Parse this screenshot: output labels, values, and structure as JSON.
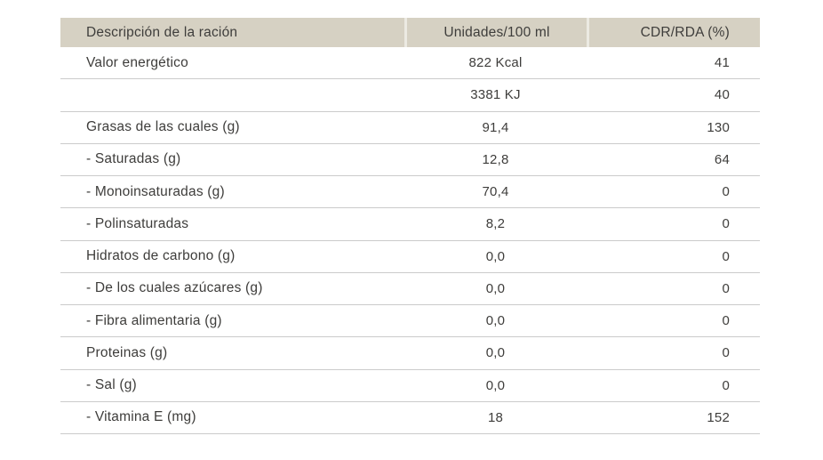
{
  "colors": {
    "header_bg": "#d6d1c3",
    "header_gap": "#eceae2",
    "row_line": "#cbcbcb",
    "text": "#3e3d3b",
    "page_bg": "#ffffff"
  },
  "table": {
    "columns": [
      {
        "label": "Descripción de la ración"
      },
      {
        "label": "Unidades/100 ml"
      },
      {
        "label": "CDR/RDA (%)"
      }
    ],
    "rows": [
      {
        "label": "Valor energético",
        "value": "822 Kcal",
        "cdr": "41"
      },
      {
        "label": "",
        "value": "3381 KJ",
        "cdr": "40"
      },
      {
        "label": "Grasas de las cuales (g)",
        "value": "91,4",
        "cdr": "130"
      },
      {
        "label": "- Saturadas (g)",
        "value": "12,8",
        "cdr": "64"
      },
      {
        "label": "- Monoinsaturadas (g)",
        "value": "70,4",
        "cdr": "0"
      },
      {
        "label": "- Polinsaturadas",
        "value": "8,2",
        "cdr": "0"
      },
      {
        "label": "Hidratos de carbono (g)",
        "value": "0,0",
        "cdr": "0"
      },
      {
        "label": "- De los cuales azúcares (g)",
        "value": "0,0",
        "cdr": "0"
      },
      {
        "label": "- Fibra alimentaria (g)",
        "value": "0,0",
        "cdr": "0"
      },
      {
        "label": "Proteinas (g)",
        "value": "0,0",
        "cdr": "0"
      },
      {
        "label": "- Sal (g)",
        "value": "0,0",
        "cdr": "0"
      },
      {
        "label": "- Vitamina E (mg)",
        "value": "18",
        "cdr": "152"
      }
    ]
  }
}
